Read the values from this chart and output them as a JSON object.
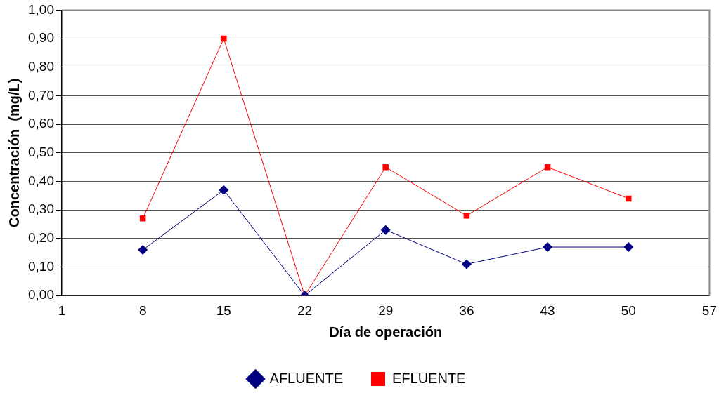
{
  "chart_data": {
    "type": "line",
    "xlabel": "Día de operación",
    "ylabel": "Concentración  (mg/L)",
    "x": [
      8,
      15,
      22,
      29,
      36,
      43,
      50
    ],
    "series": [
      {
        "name": "AFLUENTE",
        "color": "#000080",
        "marker": "diamond",
        "values": [
          0.16,
          0.37,
          0.0,
          0.23,
          0.11,
          0.17,
          0.17
        ]
      },
      {
        "name": "EFLUENTE",
        "color": "#ff0000",
        "marker": "square",
        "values": [
          0.27,
          0.9,
          0.0,
          0.45,
          0.28,
          0.45,
          0.34
        ]
      }
    ],
    "xlim": [
      1,
      57
    ],
    "xticks": [
      1,
      8,
      15,
      22,
      29,
      36,
      43,
      50,
      57
    ],
    "ylim": [
      0,
      1
    ],
    "yticks": [
      {
        "value": 0,
        "label": "0,00"
      },
      {
        "value": 0.1,
        "label": "0,10"
      },
      {
        "value": 0.2,
        "label": "0,20"
      },
      {
        "value": 0.3,
        "label": "0,30"
      },
      {
        "value": 0.4,
        "label": "0,40"
      },
      {
        "value": 0.5,
        "label": "0,50"
      },
      {
        "value": 0.6,
        "label": "0,60"
      },
      {
        "value": 0.7,
        "label": "0,70"
      },
      {
        "value": 0.8,
        "label": "0,80"
      },
      {
        "value": 0.9,
        "label": "0,90"
      },
      {
        "value": 1,
        "label": "1,00"
      }
    ],
    "grid": "y",
    "legend": "bottom",
    "line_style": "solid"
  }
}
